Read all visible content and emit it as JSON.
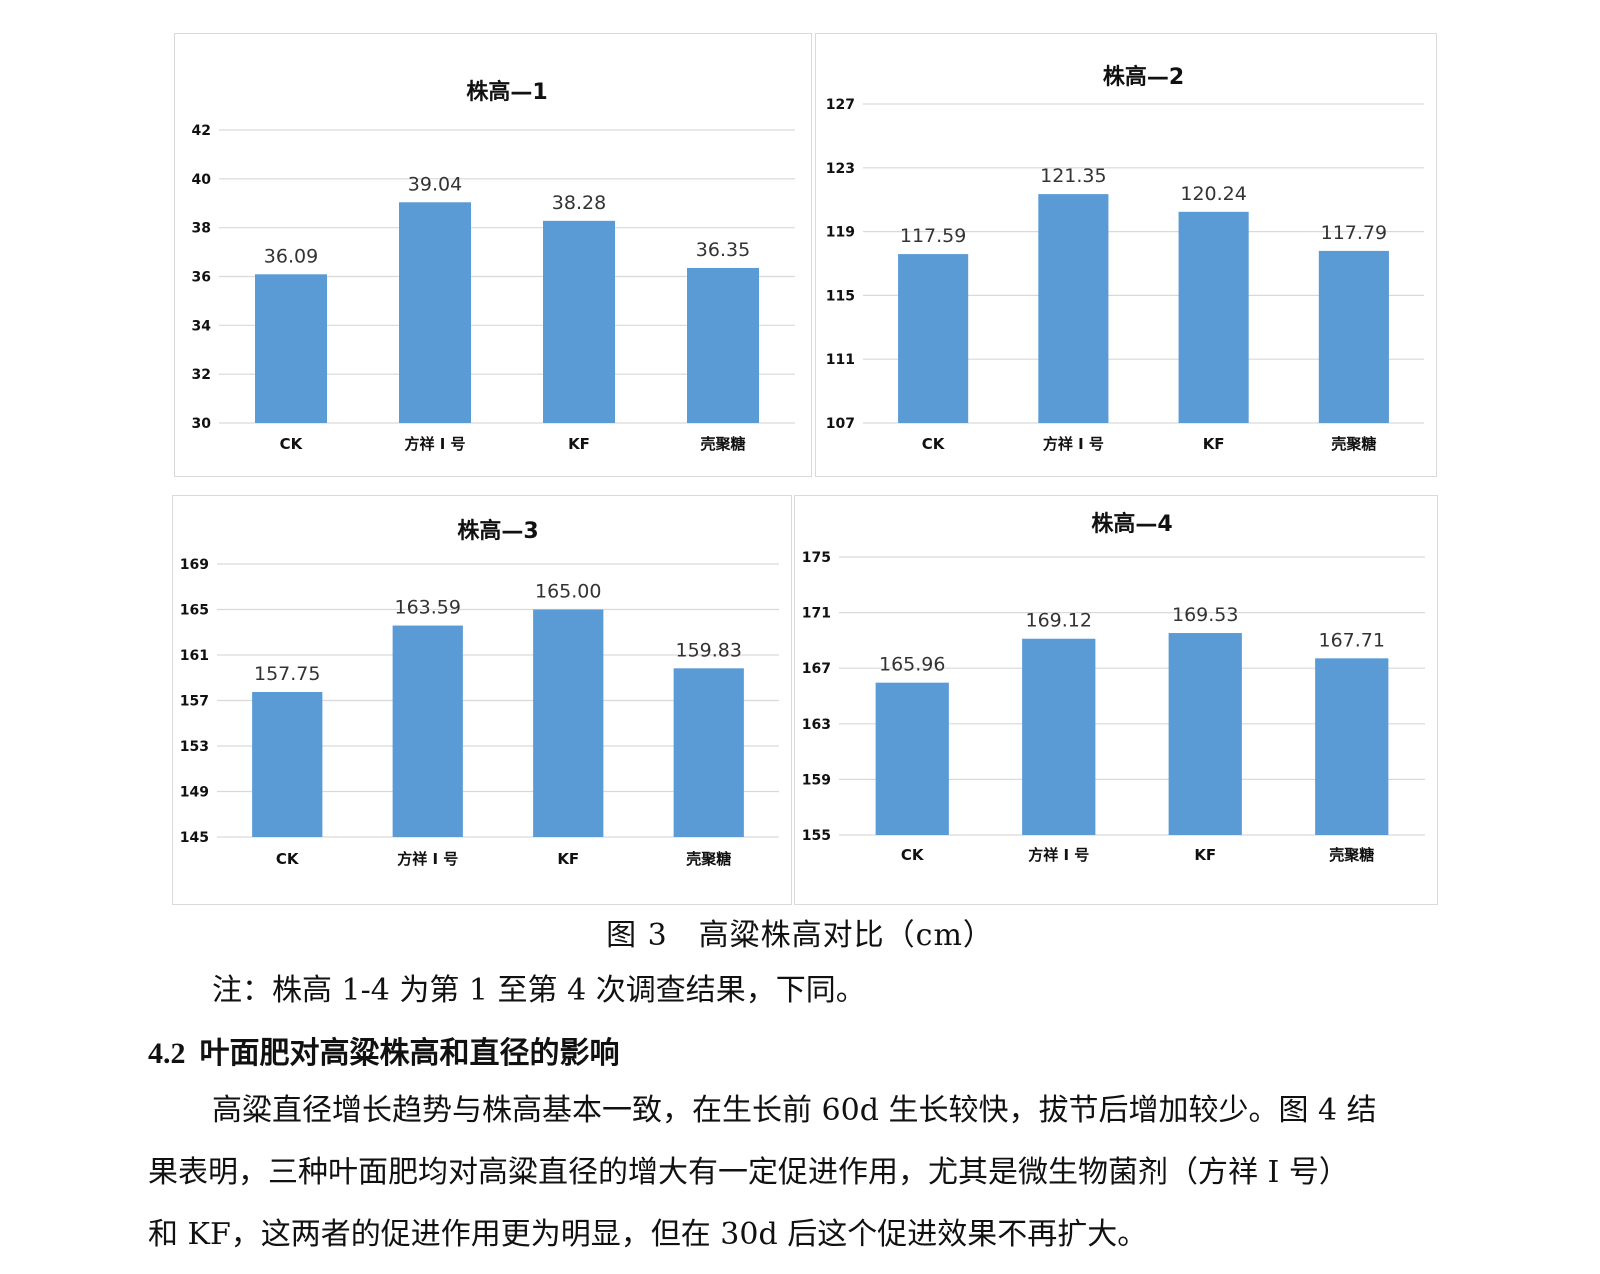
{
  "figure": {
    "caption": "图 3　高粱株高对比（cm）",
    "note": "注：株高 1-4 为第 1 至第 4 次调查结果，下同。"
  },
  "section": {
    "number": "4.2",
    "title": "叶面肥对高粱株高和直径的影响",
    "paragraph_lines": [
      "高粱直径增长趋势与株高基本一致，在生长前 60d 生长较快，拔节后增加较少。图 4 结",
      "果表明，三种叶面肥均对高粱直径的增大有一定促进作用，尤其是微生物菌剂（方祥 Ⅰ 号）",
      "和 KF，这两者的促进作用更为明显，但在 30d 后这个促进效果不再扩大。"
    ]
  },
  "colors": {
    "bar": "#5b9bd5",
    "grid": "#d9d9d9",
    "text": "#111111"
  },
  "chart_data": [
    {
      "type": "bar",
      "title": "株高—1",
      "categories": [
        "CK",
        "方祥 Ⅰ 号",
        "KF",
        "壳聚糖"
      ],
      "values": [
        36.09,
        39.04,
        38.28,
        36.35
      ],
      "value_labels": [
        "36.09",
        "39.04",
        "38.28",
        "36.35"
      ],
      "yticks": [
        "30",
        "32",
        "34",
        "36",
        "38",
        "40",
        "42"
      ],
      "ylim": [
        30,
        42
      ],
      "grid": true,
      "legend": "none"
    },
    {
      "type": "bar",
      "title": "株高—2",
      "categories": [
        "CK",
        "方祥 Ⅰ 号",
        "KF",
        "壳聚糖"
      ],
      "values": [
        117.59,
        121.35,
        120.24,
        117.79
      ],
      "value_labels": [
        "117.59",
        "121.35",
        "120.24",
        "117.79"
      ],
      "yticks": [
        "107",
        "111",
        "115",
        "119",
        "123",
        "127"
      ],
      "ylim": [
        107,
        127
      ],
      "grid": true,
      "legend": "none"
    },
    {
      "type": "bar",
      "title": "株高—3",
      "categories": [
        "CK",
        "方祥 Ⅰ 号",
        "KF",
        "壳聚糖"
      ],
      "values": [
        157.75,
        163.59,
        165.0,
        159.83
      ],
      "value_labels": [
        "157.75",
        "163.59",
        "165.00",
        "159.83"
      ],
      "yticks": [
        "145",
        "149",
        "153",
        "157",
        "161",
        "165",
        "169"
      ],
      "ylim": [
        145,
        169
      ],
      "grid": true,
      "legend": "none"
    },
    {
      "type": "bar",
      "title": "株高—4",
      "categories": [
        "CK",
        "方祥 Ⅰ 号",
        "KF",
        "壳聚糖"
      ],
      "values": [
        165.96,
        169.12,
        169.53,
        167.71
      ],
      "value_labels": [
        "165.96",
        "169.12",
        "169.53",
        "167.71"
      ],
      "yticks": [
        "155",
        "159",
        "163",
        "167",
        "171",
        "175"
      ],
      "ylim": [
        155,
        175
      ],
      "grid": true,
      "legend": "none"
    }
  ]
}
